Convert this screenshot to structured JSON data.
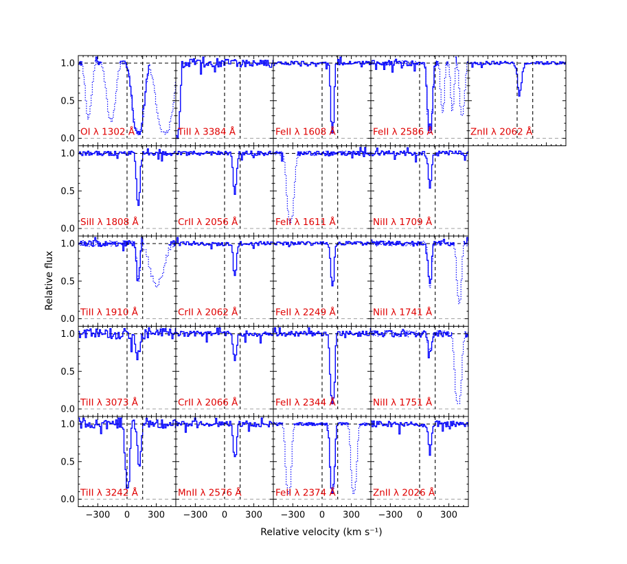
{
  "chart_data": {
    "type": "line",
    "xlabel": "Relative velocity (km s⁻¹)",
    "ylabel": "Relative flux",
    "xlim": [
      -500,
      500
    ],
    "ylim": [
      -0.1,
      1.1
    ],
    "x_ticks": [
      -300,
      0,
      300
    ],
    "y_ticks": [
      0.0,
      0.5,
      1.0
    ],
    "x_tick_labels": [
      "−300",
      "0",
      "300"
    ],
    "y_tick_labels": [
      "0.0",
      "0.5",
      "1.0"
    ],
    "reference_velocities": [
      0,
      160
    ],
    "colors": {
      "spectrum": "#0000ff",
      "label": "#e00000",
      "frame": "#000000",
      "reference": "#000000"
    },
    "panels": [
      {
        "label": "OI λ 1302 Å",
        "row": 0,
        "col": 0,
        "lines": [
          {
            "v": 110,
            "depth": 0.85,
            "width": 40
          }
        ],
        "blend": [
          {
            "v": -400,
            "depth": 0.4,
            "width": 25
          },
          {
            "v": -170,
            "depth": 0.45,
            "width": 35
          },
          {
            "v": 380,
            "depth": 0.87,
            "width": 55
          }
        ],
        "noise": 0.03
      },
      {
        "label": "TiII λ 3384 Å",
        "row": 0,
        "col": 1,
        "lines": [
          {
            "v": -490,
            "depth": 1.0,
            "width": 18
          }
        ],
        "blend": [],
        "noise": 0.06
      },
      {
        "label": "FeII λ 1608 Å",
        "row": 0,
        "col": 2,
        "lines": [
          {
            "v": 100,
            "depth": 0.82,
            "width": 12
          }
        ],
        "blend": [],
        "noise": 0.025
      },
      {
        "label": "FeII λ 2586 Å",
        "row": 0,
        "col": 3,
        "lines": [
          {
            "v": 100,
            "depth": 0.8,
            "width": 18
          }
        ],
        "blend": [
          {
            "v": 230,
            "depth": 0.35,
            "width": 15
          },
          {
            "v": 330,
            "depth": 0.3,
            "width": 15
          },
          {
            "v": 430,
            "depth": 0.4,
            "width": 20
          }
        ],
        "noise": 0.035
      },
      {
        "label": "ZnII λ 2062 Å",
        "row": 0,
        "col": 4,
        "lines": [
          {
            "v": 20,
            "depth": 0.15,
            "width": 20
          }
        ],
        "blend": [],
        "noise": 0.025
      },
      {
        "label": "SiII λ 1808 Å",
        "row": 1,
        "col": 0,
        "lines": [
          {
            "v": 110,
            "depth": 0.35,
            "width": 15
          }
        ],
        "blend": [],
        "noise": 0.03
      },
      {
        "label": "CrII λ 2056 Å",
        "row": 1,
        "col": 1,
        "lines": [
          {
            "v": 100,
            "depth": 0.25,
            "width": 15
          }
        ],
        "blend": [],
        "noise": 0.03
      },
      {
        "label": "FeII λ 1611 Å",
        "row": 1,
        "col": 2,
        "lines": [],
        "blend": [
          {
            "v": -330,
            "depth": 0.75,
            "width": 25
          }
        ],
        "noise": 0.03
      },
      {
        "label": "NiII λ 1709 Å",
        "row": 1,
        "col": 3,
        "lines": [
          {
            "v": 100,
            "depth": 0.2,
            "width": 15
          }
        ],
        "blend": [],
        "noise": 0.035
      },
      {
        "label": "TiII λ 1910 Å",
        "row": 2,
        "col": 0,
        "lines": [
          {
            "v": 110,
            "depth": 0.2,
            "width": 15
          }
        ],
        "blend": [
          {
            "v": 300,
            "depth": 0.25,
            "width": 60
          }
        ],
        "noise": 0.04
      },
      {
        "label": "CrII λ 2062 Å",
        "row": 2,
        "col": 1,
        "lines": [
          {
            "v": 100,
            "depth": 0.18,
            "width": 15
          }
        ],
        "blend": [],
        "noise": 0.03
      },
      {
        "label": "FeII λ 2249 Å",
        "row": 2,
        "col": 2,
        "lines": [
          {
            "v": 100,
            "depth": 0.25,
            "width": 15
          }
        ],
        "blend": [],
        "noise": 0.025
      },
      {
        "label": "NiII λ 1741 Å",
        "row": 2,
        "col": 3,
        "lines": [
          {
            "v": 100,
            "depth": 0.25,
            "width": 15
          }
        ],
        "blend": [
          {
            "v": 400,
            "depth": 0.5,
            "width": 18
          }
        ],
        "noise": 0.035
      },
      {
        "label": "TiII λ 3073 Å",
        "row": 3,
        "col": 0,
        "lines": [
          {
            "v": 100,
            "depth": 0.12,
            "width": 20
          }
        ],
        "blend": [],
        "noise": 0.07
      },
      {
        "label": "CrII λ 2066 Å",
        "row": 3,
        "col": 1,
        "lines": [
          {
            "v": 100,
            "depth": 0.15,
            "width": 15
          }
        ],
        "blend": [],
        "noise": 0.035
      },
      {
        "label": "FeII λ 2344 Å",
        "row": 3,
        "col": 2,
        "lines": [
          {
            "v": 100,
            "depth": 0.8,
            "width": 16
          }
        ],
        "blend": [],
        "noise": 0.035
      },
      {
        "label": "NiII λ 1751 Å",
        "row": 3,
        "col": 3,
        "lines": [
          {
            "v": 100,
            "depth": 0.1,
            "width": 15
          }
        ],
        "blend": [
          {
            "v": 390,
            "depth": 1.0,
            "width": 22
          }
        ],
        "noise": 0.045
      },
      {
        "label": "TiII λ 3242 Å",
        "row": 4,
        "col": 0,
        "lines": [
          {
            "v": 0,
            "depth": 0.7,
            "width": 15
          },
          {
            "v": 120,
            "depth": 0.25,
            "width": 15
          }
        ],
        "blend": [],
        "noise": 0.06
      },
      {
        "label": "MnII λ 2576 Å",
        "row": 4,
        "col": 1,
        "lines": [
          {
            "v": 100,
            "depth": 0.2,
            "width": 15
          }
        ],
        "blend": [],
        "noise": 0.04
      },
      {
        "label": "FeII λ 2374 Å",
        "row": 4,
        "col": 2,
        "lines": [
          {
            "v": 100,
            "depth": 0.8,
            "width": 16
          }
        ],
        "blend": [
          {
            "v": -350,
            "depth": 0.8,
            "width": 20
          },
          {
            "v": 320,
            "depth": 0.8,
            "width": 20
          }
        ],
        "noise": 0.02
      },
      {
        "label": "ZnII λ 2026 Å",
        "row": 4,
        "col": 3,
        "lines": [
          {
            "v": 100,
            "depth": 0.15,
            "width": 15
          }
        ],
        "blend": [],
        "noise": 0.04
      }
    ]
  }
}
